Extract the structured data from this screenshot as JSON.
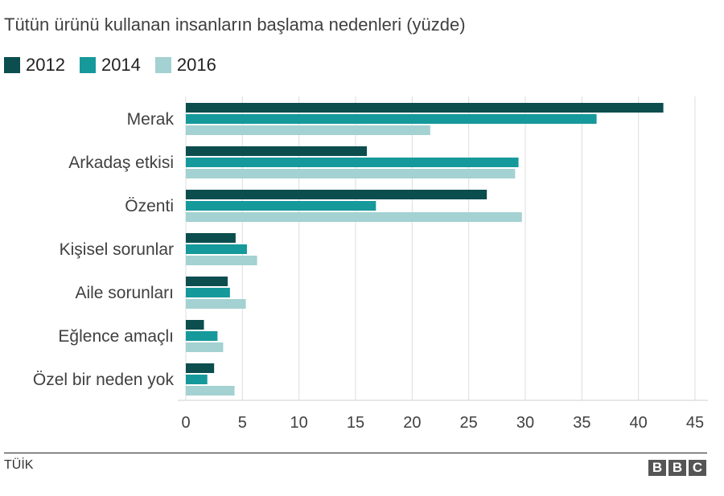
{
  "chart_data": {
    "type": "bar",
    "orientation": "horizontal",
    "title": "Tütün ürünü kullanan insanların başlama nedenleri (yüzde)",
    "categories": [
      "Merak",
      "Arkadaş etkisi",
      "Özenti",
      "Kişisel sorunlar",
      "Aile sorunları",
      "Eğlence amaçlı",
      "Özel bir neden yok"
    ],
    "series": [
      {
        "name": "2012",
        "color": "#0c4d4e",
        "values": [
          42.2,
          16.0,
          26.6,
          4.4,
          3.7,
          1.6,
          2.5
        ]
      },
      {
        "name": "2014",
        "color": "#16999b",
        "values": [
          36.3,
          29.4,
          16.8,
          5.4,
          3.9,
          2.8,
          1.9
        ]
      },
      {
        "name": "2016",
        "color": "#a4d1d1",
        "values": [
          21.6,
          29.1,
          29.7,
          6.3,
          5.3,
          3.3,
          4.3
        ]
      }
    ],
    "xlim": [
      0,
      45
    ],
    "xticks": [
      0,
      5,
      10,
      15,
      20,
      25,
      30,
      35,
      40,
      45
    ],
    "grid": true,
    "legend_position": "top-left"
  },
  "source": "TÜİK",
  "logo": [
    "B",
    "B",
    "C"
  ]
}
